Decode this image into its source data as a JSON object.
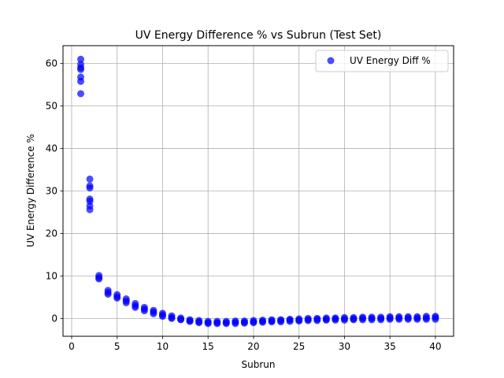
{
  "chart_data": {
    "type": "scatter",
    "title": "UV Energy Difference % vs Subrun (Test Set)",
    "xlabel": "Subrun",
    "ylabel": "UV Energy Difference %",
    "xlim": [
      -0.95,
      42.0
    ],
    "ylim": [
      -4.2,
      64.2
    ],
    "xticks": [
      0,
      5,
      10,
      15,
      20,
      25,
      30,
      35,
      40
    ],
    "yticks": [
      0,
      10,
      20,
      30,
      40,
      50,
      60
    ],
    "grid": true,
    "legend_position": "top-right",
    "series": [
      {
        "name": "UV Energy Diff %",
        "color": "#0000ff",
        "opacity": 0.7,
        "points": [
          [
            1,
            61.0
          ],
          [
            1,
            59.8
          ],
          [
            1,
            59.0
          ],
          [
            1,
            58.6
          ],
          [
            1,
            56.8
          ],
          [
            1,
            55.8
          ],
          [
            1,
            52.9
          ],
          [
            2,
            32.8
          ],
          [
            2,
            31.2
          ],
          [
            2,
            30.7
          ],
          [
            2,
            28.1
          ],
          [
            2,
            27.6
          ],
          [
            2,
            26.5
          ],
          [
            2,
            25.6
          ],
          [
            3,
            10.1
          ],
          [
            3,
            9.6
          ],
          [
            3,
            9.3
          ],
          [
            4,
            6.6
          ],
          [
            4,
            6.1
          ],
          [
            4,
            5.7
          ],
          [
            5,
            5.6
          ],
          [
            5,
            5.1
          ],
          [
            5,
            4.8
          ],
          [
            6,
            4.6
          ],
          [
            6,
            4.1
          ],
          [
            6,
            3.7
          ],
          [
            7,
            3.5
          ],
          [
            7,
            3.0
          ],
          [
            7,
            2.6
          ],
          [
            8,
            2.6
          ],
          [
            8,
            2.2
          ],
          [
            8,
            1.8
          ],
          [
            9,
            1.9
          ],
          [
            9,
            1.5
          ],
          [
            9,
            1.1
          ],
          [
            10,
            1.2
          ],
          [
            10,
            0.8
          ],
          [
            10,
            0.5
          ],
          [
            11,
            0.6
          ],
          [
            11,
            0.2
          ],
          [
            11,
            0.0
          ],
          [
            12,
            0.1
          ],
          [
            12,
            -0.2
          ],
          [
            12,
            -0.3
          ],
          [
            13,
            -0.3
          ],
          [
            13,
            -0.6
          ],
          [
            13,
            -0.7
          ],
          [
            14,
            -0.5
          ],
          [
            14,
            -0.8
          ],
          [
            14,
            -1.0
          ],
          [
            15,
            -0.7
          ],
          [
            15,
            -1.0
          ],
          [
            15,
            -1.2
          ],
          [
            16,
            -0.7
          ],
          [
            16,
            -1.0
          ],
          [
            16,
            -1.2
          ],
          [
            17,
            -0.7
          ],
          [
            17,
            -1.0
          ],
          [
            17,
            -1.2
          ],
          [
            18,
            -0.6
          ],
          [
            18,
            -0.9
          ],
          [
            18,
            -1.2
          ],
          [
            19,
            -0.6
          ],
          [
            19,
            -0.9
          ],
          [
            19,
            -1.1
          ],
          [
            20,
            -0.5
          ],
          [
            20,
            -0.8
          ],
          [
            20,
            -1.0
          ],
          [
            21,
            -0.4
          ],
          [
            21,
            -0.7
          ],
          [
            21,
            -0.9
          ],
          [
            22,
            -0.3
          ],
          [
            22,
            -0.6
          ],
          [
            22,
            -0.8
          ],
          [
            23,
            -0.3
          ],
          [
            23,
            -0.5
          ],
          [
            23,
            -0.8
          ],
          [
            24,
            -0.2
          ],
          [
            24,
            -0.4
          ],
          [
            24,
            -0.7
          ],
          [
            25,
            -0.1
          ],
          [
            25,
            -0.4
          ],
          [
            25,
            -0.6
          ],
          [
            26,
            0.0
          ],
          [
            26,
            -0.3
          ],
          [
            26,
            -0.5
          ],
          [
            27,
            0.0
          ],
          [
            27,
            -0.2
          ],
          [
            27,
            -0.5
          ],
          [
            28,
            0.1
          ],
          [
            28,
            -0.2
          ],
          [
            28,
            -0.4
          ],
          [
            29,
            0.1
          ],
          [
            29,
            -0.1
          ],
          [
            29,
            -0.4
          ],
          [
            30,
            0.2
          ],
          [
            30,
            -0.1
          ],
          [
            30,
            -0.4
          ],
          [
            31,
            0.2
          ],
          [
            31,
            -0.1
          ],
          [
            31,
            -0.3
          ],
          [
            32,
            0.3
          ],
          [
            32,
            0.0
          ],
          [
            32,
            -0.3
          ],
          [
            33,
            0.3
          ],
          [
            33,
            0.0
          ],
          [
            33,
            -0.3
          ],
          [
            34,
            0.3
          ],
          [
            34,
            0.0
          ],
          [
            34,
            -0.3
          ],
          [
            35,
            0.4
          ],
          [
            35,
            0.1
          ],
          [
            35,
            -0.2
          ],
          [
            36,
            0.4
          ],
          [
            36,
            0.1
          ],
          [
            36,
            -0.2
          ],
          [
            37,
            0.4
          ],
          [
            37,
            0.1
          ],
          [
            37,
            -0.2
          ],
          [
            38,
            0.4
          ],
          [
            38,
            0.1
          ],
          [
            38,
            -0.2
          ],
          [
            39,
            0.5
          ],
          [
            39,
            0.1
          ],
          [
            39,
            -0.2
          ],
          [
            40,
            0.5
          ],
          [
            40,
            0.2
          ],
          [
            40,
            -0.2
          ]
        ]
      }
    ]
  }
}
